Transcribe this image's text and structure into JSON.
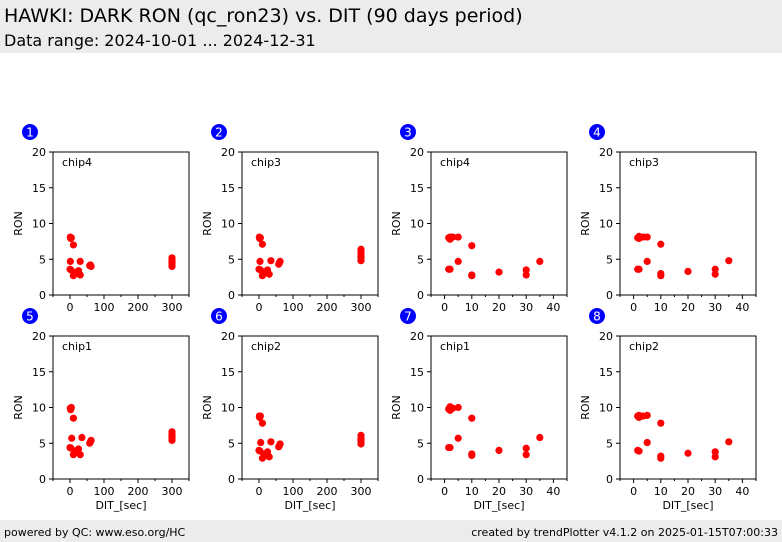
{
  "header": {
    "title": "HAWKI: DARK RON (qc_ron23) vs. DIT (90 days period)",
    "subtitle": "Data range: 2024-10-01 ... 2024-12-31"
  },
  "footer": {
    "left": "powered by QC: www.eso.org/HC",
    "right": "created by trendPlotter v4.1.2 on 2025-01-15T07:00:33"
  },
  "colors": {
    "points": "#ff0000",
    "badge": "#0000ff",
    "badge_text": "#ffffff",
    "band": "#ececec"
  },
  "chart_data": [
    {
      "type": "scatter",
      "badge": "1",
      "label": "chip4",
      "xlabel": "",
      "ylabel": "RON",
      "xlim": [
        -50,
        350
      ],
      "ylim": [
        0,
        20
      ],
      "xticks": [
        0,
        100,
        200,
        300
      ],
      "yticks": [
        0,
        5,
        10,
        15,
        20
      ],
      "points": [
        [
          1,
          8.1
        ],
        [
          2,
          7.9
        ],
        [
          4,
          8.0
        ],
        [
          10,
          7.0
        ],
        [
          1,
          4.7
        ],
        [
          0,
          3.6
        ],
        [
          3,
          3.5
        ],
        [
          30,
          4.7
        ],
        [
          10,
          2.7
        ],
        [
          15,
          3.0
        ],
        [
          20,
          3.2
        ],
        [
          25,
          3.4
        ],
        [
          30,
          2.8
        ],
        [
          60,
          4.2
        ],
        [
          62,
          4.0
        ],
        [
          58,
          4.1
        ],
        [
          300,
          4.0
        ],
        [
          300,
          4.3
        ],
        [
          300,
          4.6
        ],
        [
          300,
          4.9
        ],
        [
          300,
          5.2
        ],
        [
          300,
          4.5
        ]
      ]
    },
    {
      "type": "scatter",
      "badge": "2",
      "label": "chip3",
      "xlabel": "",
      "ylabel": "RON",
      "xlim": [
        -50,
        350
      ],
      "ylim": [
        0,
        20
      ],
      "xticks": [
        0,
        100,
        200,
        300
      ],
      "yticks": [
        0,
        5,
        10,
        15,
        20
      ],
      "points": [
        [
          1,
          8.1
        ],
        [
          2,
          7.9
        ],
        [
          4,
          8.0
        ],
        [
          10,
          7.1
        ],
        [
          3,
          4.7
        ],
        [
          0,
          3.6
        ],
        [
          4,
          3.5
        ],
        [
          35,
          4.8
        ],
        [
          10,
          2.7
        ],
        [
          15,
          3.2
        ],
        [
          20,
          3.3
        ],
        [
          25,
          3.5
        ],
        [
          30,
          2.9
        ],
        [
          60,
          4.5
        ],
        [
          58,
          4.3
        ],
        [
          62,
          4.7
        ],
        [
          300,
          4.8
        ],
        [
          300,
          5.2
        ],
        [
          300,
          5.6
        ],
        [
          300,
          6.0
        ],
        [
          300,
          6.4
        ],
        [
          300,
          5.4
        ]
      ]
    },
    {
      "type": "scatter",
      "badge": "3",
      "label": "chip4",
      "xlabel": "",
      "ylabel": "RON",
      "xlim": [
        -5,
        45
      ],
      "ylim": [
        0,
        20
      ],
      "xticks": [
        0,
        10,
        20,
        30,
        40
      ],
      "yticks": [
        0,
        5,
        10,
        15,
        20
      ],
      "points": [
        [
          1.5,
          8.0
        ],
        [
          2,
          7.8
        ],
        [
          2,
          8.1
        ],
        [
          3,
          8.1
        ],
        [
          5,
          8.1
        ],
        [
          10,
          6.9
        ],
        [
          5,
          4.7
        ],
        [
          1.5,
          3.6
        ],
        [
          2,
          3.6
        ],
        [
          10,
          2.7
        ],
        [
          10,
          2.8
        ],
        [
          20,
          3.2
        ],
        [
          30,
          3.5
        ],
        [
          30,
          2.8
        ],
        [
          35,
          4.7
        ]
      ]
    },
    {
      "type": "scatter",
      "badge": "4",
      "label": "chip3",
      "xlabel": "",
      "ylabel": "RON",
      "xlim": [
        -5,
        45
      ],
      "ylim": [
        0,
        20
      ],
      "xticks": [
        0,
        10,
        20,
        30,
        40
      ],
      "yticks": [
        0,
        5,
        10,
        15,
        20
      ],
      "points": [
        [
          1.5,
          8.0
        ],
        [
          2,
          7.9
        ],
        [
          2,
          8.2
        ],
        [
          3.5,
          8.1
        ],
        [
          5,
          8.1
        ],
        [
          10,
          7.1
        ],
        [
          5,
          4.7
        ],
        [
          1.5,
          3.6
        ],
        [
          2,
          3.6
        ],
        [
          10,
          2.7
        ],
        [
          10,
          3.0
        ],
        [
          20,
          3.3
        ],
        [
          30,
          3.6
        ],
        [
          30,
          2.9
        ],
        [
          35,
          4.8
        ]
      ]
    },
    {
      "type": "scatter",
      "badge": "5",
      "label": "chip1",
      "xlabel": "DIT_[sec]",
      "ylabel": "RON",
      "xlim": [
        -50,
        350
      ],
      "ylim": [
        0,
        20
      ],
      "xticks": [
        0,
        100,
        200,
        300
      ],
      "yticks": [
        0,
        5,
        10,
        15,
        20
      ],
      "points": [
        [
          1,
          9.9
        ],
        [
          2,
          9.7
        ],
        [
          4,
          10.0
        ],
        [
          10,
          8.5
        ],
        [
          5,
          5.7
        ],
        [
          0,
          4.4
        ],
        [
          3,
          4.3
        ],
        [
          35,
          5.8
        ],
        [
          10,
          3.4
        ],
        [
          15,
          3.8
        ],
        [
          20,
          4.0
        ],
        [
          25,
          4.2
        ],
        [
          30,
          3.4
        ],
        [
          60,
          5.2
        ],
        [
          58,
          5.0
        ],
        [
          62,
          5.4
        ],
        [
          300,
          5.4
        ],
        [
          300,
          5.8
        ],
        [
          300,
          6.2
        ],
        [
          300,
          6.6
        ],
        [
          300,
          6.0
        ],
        [
          300,
          5.6
        ]
      ]
    },
    {
      "type": "scatter",
      "badge": "6",
      "label": "chip2",
      "xlabel": "DIT_[sec]",
      "ylabel": "RON",
      "xlim": [
        -50,
        350
      ],
      "ylim": [
        0,
        20
      ],
      "xticks": [
        0,
        100,
        200,
        300
      ],
      "yticks": [
        0,
        5,
        10,
        15,
        20
      ],
      "points": [
        [
          1,
          8.8
        ],
        [
          2,
          8.6
        ],
        [
          4,
          8.8
        ],
        [
          10,
          7.8
        ],
        [
          5,
          5.1
        ],
        [
          0,
          4.0
        ],
        [
          3,
          3.9
        ],
        [
          35,
          5.2
        ],
        [
          10,
          2.9
        ],
        [
          15,
          3.3
        ],
        [
          20,
          3.5
        ],
        [
          25,
          3.8
        ],
        [
          30,
          3.1
        ],
        [
          60,
          4.7
        ],
        [
          58,
          4.5
        ],
        [
          62,
          4.9
        ],
        [
          300,
          4.9
        ],
        [
          300,
          5.3
        ],
        [
          300,
          5.7
        ],
        [
          300,
          6.1
        ],
        [
          300,
          5.5
        ]
      ]
    },
    {
      "type": "scatter",
      "badge": "7",
      "label": "chip1",
      "xlabel": "DIT_[sec]",
      "ylabel": "RON",
      "xlim": [
        -5,
        45
      ],
      "ylim": [
        0,
        20
      ],
      "xticks": [
        0,
        10,
        20,
        30,
        40
      ],
      "yticks": [
        0,
        5,
        10,
        15,
        20
      ],
      "points": [
        [
          1.5,
          9.8
        ],
        [
          2,
          9.6
        ],
        [
          2,
          10.1
        ],
        [
          3,
          9.9
        ],
        [
          5,
          10.0
        ],
        [
          10,
          8.5
        ],
        [
          5,
          5.7
        ],
        [
          1.5,
          4.4
        ],
        [
          2,
          4.4
        ],
        [
          10,
          3.3
        ],
        [
          10,
          3.5
        ],
        [
          20,
          4.0
        ],
        [
          30,
          4.3
        ],
        [
          30,
          3.4
        ],
        [
          35,
          5.8
        ]
      ]
    },
    {
      "type": "scatter",
      "badge": "8",
      "label": "chip2",
      "xlabel": "DIT_[sec]",
      "ylabel": "RON",
      "xlim": [
        -5,
        45
      ],
      "ylim": [
        0,
        20
      ],
      "xticks": [
        0,
        10,
        20,
        30,
        40
      ],
      "yticks": [
        0,
        5,
        10,
        15,
        20
      ],
      "points": [
        [
          1.5,
          8.8
        ],
        [
          2,
          8.6
        ],
        [
          2,
          8.9
        ],
        [
          3.5,
          8.8
        ],
        [
          5,
          8.9
        ],
        [
          10,
          7.8
        ],
        [
          5,
          5.1
        ],
        [
          1.5,
          4.0
        ],
        [
          2,
          3.9
        ],
        [
          10,
          2.9
        ],
        [
          10,
          3.2
        ],
        [
          20,
          3.6
        ],
        [
          30,
          3.8
        ],
        [
          30,
          3.1
        ],
        [
          35,
          5.2
        ]
      ]
    }
  ]
}
